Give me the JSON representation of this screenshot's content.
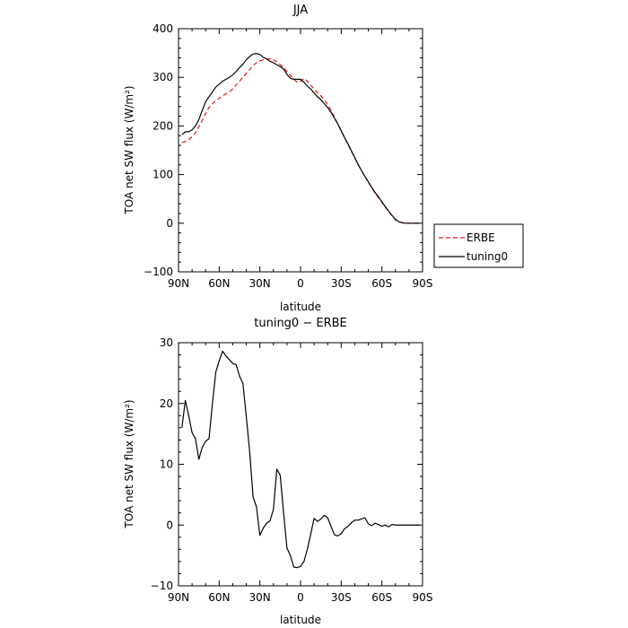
{
  "chart_data": [
    {
      "type": "line",
      "title": "JJA",
      "xlabel": "latitude",
      "ylabel": "TOA net SW flux (W/m²)",
      "xlim": [
        90,
        -90
      ],
      "ylim": [
        -100,
        400
      ],
      "x_ticks": [
        90,
        60,
        30,
        0,
        -30,
        -60,
        -90
      ],
      "x_tick_labels": [
        "90N",
        "60N",
        "30N",
        "0",
        "30S",
        "60S",
        "90S"
      ],
      "y_ticks": [
        -100,
        0,
        100,
        200,
        300,
        400
      ],
      "y_tick_labels": [
        "−100",
        "0",
        "100",
        "200",
        "300",
        "400"
      ],
      "legend_position": "outside-right-bottom",
      "x": [
        87.5,
        85,
        82.5,
        80,
        77.5,
        75,
        72.5,
        70,
        67.5,
        65,
        62.5,
        60,
        57.5,
        55,
        52.5,
        50,
        47.5,
        45,
        42.5,
        40,
        37.5,
        35,
        32.5,
        30,
        27.5,
        25,
        22.5,
        20,
        17.5,
        15,
        12.5,
        10,
        7.5,
        5,
        2.5,
        0,
        -2.5,
        -5,
        -7.5,
        -10,
        -12.5,
        -15,
        -17.5,
        -20,
        -22.5,
        -25,
        -27.5,
        -30,
        -32.5,
        -35,
        -37.5,
        -40,
        -42.5,
        -45,
        -47.5,
        -50,
        -52.5,
        -55,
        -57.5,
        -60,
        -62.5,
        -65,
        -67.5,
        -70,
        -72.5,
        -75,
        -77.5,
        -80,
        -82.5,
        -85,
        -87.5
      ],
      "series": [
        {
          "name": "ERBE",
          "color": "#e31a1c",
          "dash": "dashed",
          "values": [
            166,
            168,
            172,
            178,
            186,
            198,
            212,
            226,
            238,
            246,
            252,
            257,
            262,
            266,
            270,
            276,
            284,
            292,
            300,
            308,
            316,
            324,
            330,
            334,
            336,
            338,
            338,
            336,
            332,
            326,
            320,
            312,
            304,
            296,
            290,
            292,
            298,
            292,
            284,
            276,
            268,
            262,
            254,
            244,
            232,
            218,
            204,
            190,
            176,
            162,
            148,
            134,
            120,
            108,
            96,
            84,
            73,
            62,
            52,
            43,
            33,
            24,
            15,
            7,
            3,
            1,
            0,
            0,
            0,
            0,
            0
          ]
        },
        {
          "name": "tuning0",
          "color": "#000000",
          "dash": "solid",
          "values": [
            182,
            188,
            188,
            192,
            200,
            213,
            232,
            250,
            260,
            270,
            280,
            286,
            292,
            296,
            300,
            305,
            312,
            320,
            327,
            336,
            343,
            348,
            349,
            347,
            341,
            338,
            333,
            330,
            326,
            322,
            317,
            306,
            298,
            296,
            296,
            296,
            290,
            282,
            276,
            268,
            260,
            254,
            246,
            238,
            228,
            216,
            204,
            190,
            176,
            163,
            149,
            135,
            121,
            108,
            96,
            85,
            74,
            63,
            54,
            44,
            34,
            25,
            16,
            8,
            3,
            1,
            0,
            0,
            0,
            0,
            0
          ]
        }
      ]
    },
    {
      "type": "line",
      "title": "tuning0 − ERBE",
      "xlabel": "latitude",
      "ylabel": "TOA net SW flux (W/m²)",
      "xlim": [
        90,
        -90
      ],
      "ylim": [
        -10,
        30
      ],
      "x_ticks": [
        90,
        60,
        30,
        0,
        -30,
        -60,
        -90
      ],
      "x_tick_labels": [
        "90N",
        "60N",
        "30N",
        "0",
        "30S",
        "60S",
        "90S"
      ],
      "y_ticks": [
        -10,
        0,
        10,
        20,
        30
      ],
      "y_tick_labels": [
        "−10",
        "0",
        "10",
        "20",
        "30"
      ],
      "x": [
        87.5,
        85,
        82.5,
        80,
        77.5,
        75,
        72.5,
        70,
        67.5,
        65,
        62.5,
        60,
        57.5,
        55,
        52.5,
        50,
        47.5,
        45,
        42.5,
        40,
        37.5,
        35,
        32.5,
        30,
        27.5,
        25,
        22.5,
        20,
        17.5,
        15,
        12.5,
        10,
        7.5,
        5,
        2.5,
        0,
        -2.5,
        -5,
        -7.5,
        -10,
        -12.5,
        -15,
        -17.5,
        -20,
        -22.5,
        -25,
        -27.5,
        -30,
        -32.5,
        -35,
        -37.5,
        -40,
        -42.5,
        -45,
        -47.5,
        -50,
        -52.5,
        -55,
        -57.5,
        -60,
        -62.5,
        -65,
        -67.5,
        -70,
        -72.5,
        -75,
        -77.5,
        -80,
        -82.5,
        -85,
        -87.5
      ],
      "series": [
        {
          "name": "",
          "color": "#000000",
          "dash": "solid",
          "values": [
            16,
            20.5,
            18,
            15.2,
            14.2,
            10.8,
            12.8,
            13.8,
            14.2,
            20,
            25.2,
            27,
            28.6,
            27.8,
            27.2,
            26.6,
            26.4,
            24.5,
            23.3,
            17.8,
            12,
            4.6,
            3,
            -1.7,
            -0.5,
            0.3,
            0.7,
            2.6,
            9.2,
            8.2,
            2,
            -3.8,
            -5,
            -6.9,
            -7,
            -6.8,
            -6,
            -4,
            -1.5,
            1.1,
            0.6,
            1,
            1.6,
            1.2,
            -0.2,
            -1.6,
            -1.8,
            -1.4,
            -0.6,
            -0.2,
            0.4,
            0.8,
            0.8,
            1,
            1.2,
            0.2,
            -0.1,
            0.3,
            0.1,
            -0.2,
            0,
            -0.3,
            0.1,
            0,
            0,
            0,
            0,
            0,
            0,
            0,
            0
          ]
        }
      ]
    }
  ]
}
